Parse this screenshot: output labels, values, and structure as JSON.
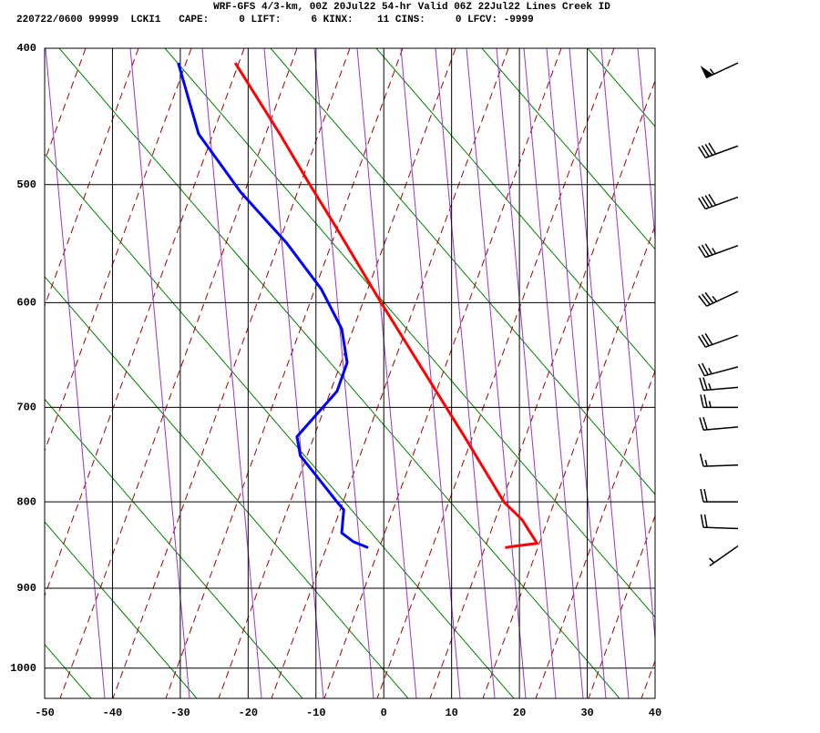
{
  "header": {
    "title": "WRF-GFS 4/3-km, 00Z 20Jul22 54-hr Valid 06Z 22Jul22 Lines Creek ID",
    "info": "220722/0600 99999  LCKI1   CAPE:     0 LIFT:     6 KINX:    11 CINS:     0 LFCV: -9999"
  },
  "chart_data": {
    "type": "skewt",
    "xlim": [
      -50,
      40
    ],
    "xticks": [
      -50,
      -40,
      -30,
      -20,
      -10,
      0,
      10,
      20,
      30,
      40
    ],
    "ylim": [
      400,
      1040
    ],
    "yticks": [
      400,
      500,
      600,
      700,
      800,
      900,
      1000
    ],
    "grid": true,
    "series": [
      {
        "color": "#ff0000",
        "pressure": [
          410,
          462,
          500,
          534,
          600,
          700,
          730,
          800,
          820,
          847,
          851,
          852
        ],
        "values": [
          -21.9,
          -15.2,
          -10.9,
          -7.1,
          -0.4,
          9.2,
          11.9,
          17.7,
          20.4,
          22.6,
          18.6,
          17.9
        ]
      },
      {
        "color": "#0000ff",
        "pressure": [
          410,
          461,
          506,
          548,
          588,
          624,
          656,
          684,
          730,
          750,
          769,
          800,
          809,
          835,
          845,
          852
        ],
        "values": [
          -30.3,
          -27.3,
          -21.1,
          -14.3,
          -9.2,
          -6.2,
          -5.4,
          -6.9,
          -12.8,
          -12.3,
          -10.2,
          -6.9,
          -5.9,
          -6.2,
          -4.5,
          -2.3
        ]
      }
    ],
    "winds": {
      "pressure": [
        410,
        470,
        510,
        550,
        590,
        630,
        660,
        680,
        700,
        720,
        760,
        800,
        830,
        850
      ],
      "speed": [
        55,
        40,
        40,
        35,
        35,
        30,
        25,
        25,
        25,
        20,
        15,
        20,
        20,
        5
      ],
      "direction": [
        245,
        250,
        250,
        250,
        245,
        250,
        255,
        265,
        270,
        265,
        268,
        270,
        272,
        235
      ]
    }
  }
}
